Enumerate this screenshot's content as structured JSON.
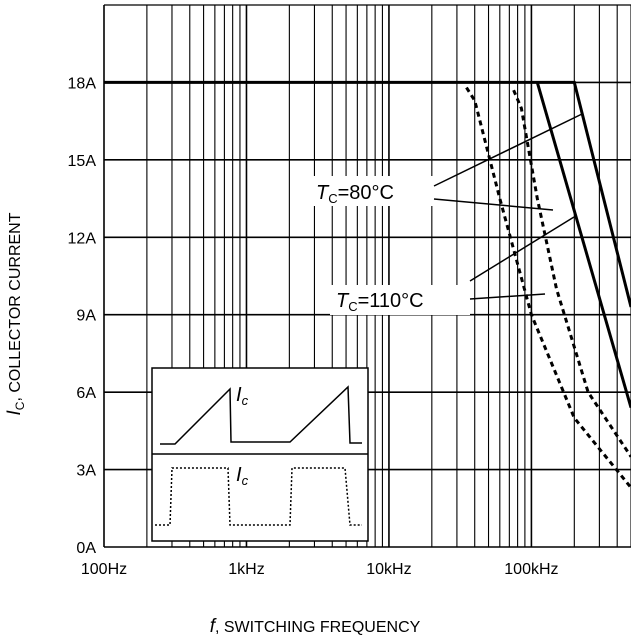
{
  "chart_data": {
    "type": "line",
    "xlabel_var": "f",
    "xlabel_text": ", SWITCHING FREQUENCY",
    "ylabel_var": "I",
    "ylabel_sub": "C",
    "ylabel_text": ", COLLECTOR CURRENT",
    "x_scale": "log",
    "xlim": [
      100,
      500000
    ],
    "ylim": [
      0,
      21
    ],
    "grid": true,
    "x_ticks": [
      {
        "value": 100,
        "label": "100Hz"
      },
      {
        "value": 1000,
        "label": "1kHz"
      },
      {
        "value": 10000,
        "label": "10kHz"
      },
      {
        "value": 100000,
        "label": "100kHz"
      }
    ],
    "y_ticks": [
      {
        "value": 0,
        "label": "0A"
      },
      {
        "value": 3,
        "label": "3A"
      },
      {
        "value": 6,
        "label": "6A"
      },
      {
        "value": 9,
        "label": "9A"
      },
      {
        "value": 12,
        "label": "12A"
      },
      {
        "value": 15,
        "label": "15A"
      },
      {
        "value": 18,
        "label": "18A"
      }
    ],
    "series": [
      {
        "style": "solid",
        "points": [
          [
            100,
            18
          ],
          [
            200000,
            18
          ],
          [
            500000,
            9.3
          ]
        ]
      },
      {
        "style": "solid",
        "points": [
          [
            110000,
            18
          ],
          [
            500000,
            5.4
          ]
        ]
      },
      {
        "style": "dashed",
        "points": [
          [
            35000,
            17.8
          ],
          [
            40000,
            17.3
          ],
          [
            60000,
            13.5
          ],
          [
            100000,
            9.0
          ],
          [
            200000,
            5.0
          ],
          [
            500000,
            2.3
          ]
        ]
      },
      {
        "style": "dashed",
        "points": [
          [
            75000,
            17.7
          ],
          [
            85000,
            17.0
          ],
          [
            110000,
            13.5
          ],
          [
            150000,
            10.0
          ],
          [
            250000,
            6.0
          ],
          [
            500000,
            3.5
          ]
        ]
      }
    ],
    "annotations": [
      {
        "var": "T",
        "sub": "C",
        "text": "=80°C"
      },
      {
        "var": "T",
        "sub": "C",
        "text": "=110°C"
      }
    ],
    "inset": {
      "waveform_top_label_var": "I",
      "waveform_top_label_sub": "c",
      "waveform_bottom_label_var": "I",
      "waveform_bottom_label_sub": "c"
    }
  }
}
